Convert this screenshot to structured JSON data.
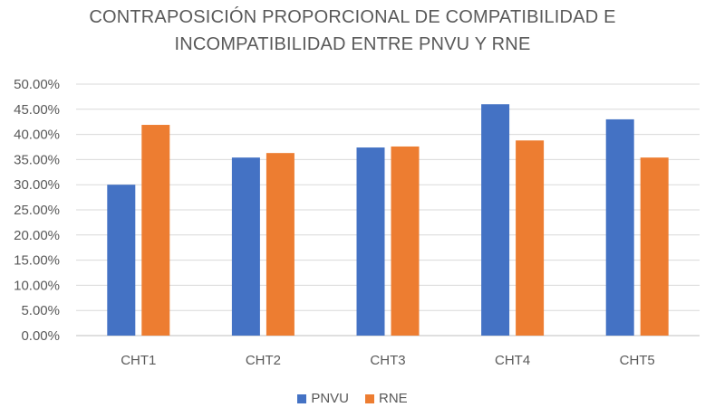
{
  "chart_data": {
    "type": "bar",
    "title_line1": "CONTRAPOSICIÓN PROPORCIONAL DE COMPATIBILIDAD E",
    "title_line2": "INCOMPATIBILIDAD ENTRE PNVU Y RNE",
    "categories": [
      "CHT1",
      "CHT2",
      "CHT3",
      "CHT4",
      "CHT5"
    ],
    "series": [
      {
        "name": "PNVU",
        "color": "#4472C4",
        "values": [
          30.0,
          35.4,
          37.4,
          46.0,
          43.0
        ]
      },
      {
        "name": "RNE",
        "color": "#ED7D31",
        "values": [
          41.9,
          36.3,
          37.6,
          38.8,
          35.4
        ]
      }
    ],
    "y_ticks": [
      "0.00%",
      "5.00%",
      "10.00%",
      "15.00%",
      "20.00%",
      "25.00%",
      "30.00%",
      "35.00%",
      "40.00%",
      "45.00%",
      "50.00%"
    ],
    "ylim": [
      0,
      50
    ],
    "y_unit": "%",
    "xlabel": "",
    "ylabel": "",
    "grid": true,
    "legend_position": "bottom"
  }
}
